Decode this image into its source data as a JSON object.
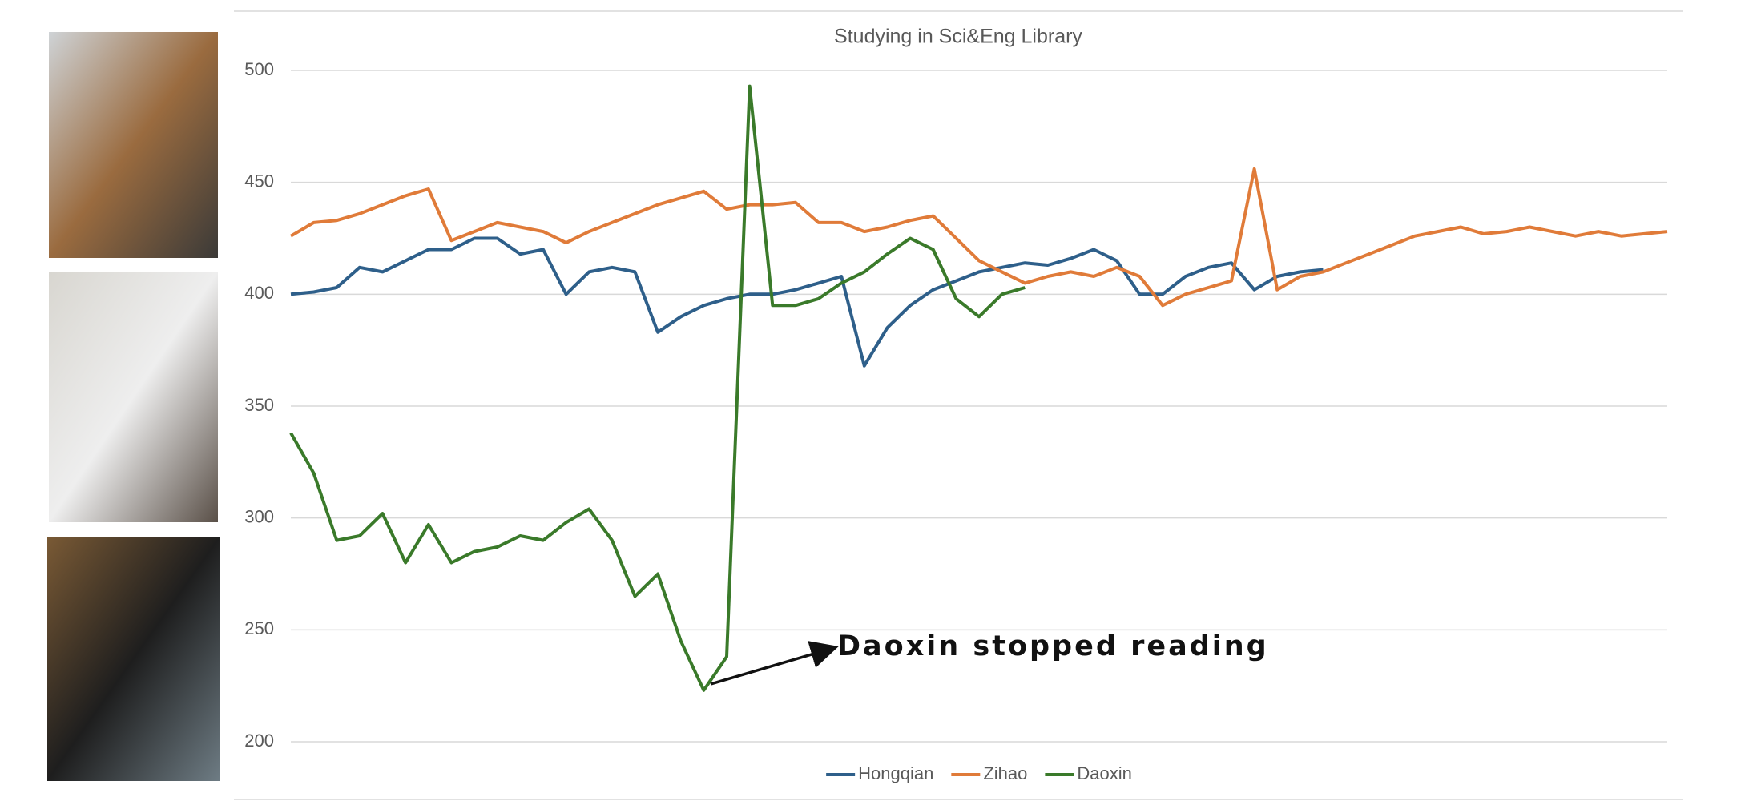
{
  "chart_data": {
    "type": "line",
    "title": "Studying in Sci&Eng Library",
    "ylim": [
      200,
      500
    ],
    "yticks": [
      200,
      250,
      300,
      350,
      400,
      450,
      500
    ],
    "grid": true,
    "legend": "bottom",
    "annotation": "Daoxin stopped reading",
    "series": [
      {
        "name": "Hongqian",
        "color": "#2e5f8a",
        "values": [
          400,
          401,
          403,
          412,
          410,
          415,
          420,
          420,
          425,
          425,
          418,
          420,
          400,
          410,
          412,
          410,
          383,
          390,
          395,
          398,
          400,
          400,
          402,
          405,
          408,
          368,
          385,
          395,
          402,
          406,
          410,
          412,
          414,
          413,
          416,
          420,
          415,
          400,
          400,
          408,
          412,
          414,
          402,
          408,
          410,
          411,
          null,
          null,
          null,
          null,
          null,
          null,
          null,
          null,
          null,
          null,
          null,
          null,
          null,
          null,
          null
        ]
      },
      {
        "name": "Zihao",
        "color": "#e07b39",
        "values": [
          426,
          432,
          433,
          436,
          440,
          444,
          447,
          424,
          428,
          432,
          430,
          428,
          423,
          428,
          432,
          436,
          440,
          443,
          446,
          438,
          440,
          440,
          441,
          432,
          432,
          428,
          430,
          433,
          435,
          425,
          415,
          410,
          405,
          408,
          410,
          408,
          412,
          408,
          395,
          400,
          403,
          406,
          456,
          402,
          408,
          410,
          414,
          418,
          422,
          426,
          428,
          430,
          427,
          428,
          430,
          428,
          426,
          428,
          426,
          427,
          428
        ]
      },
      {
        "name": "Daoxin",
        "color": "#3a7a2a",
        "values": [
          338,
          320,
          290,
          292,
          302,
          280,
          297,
          280,
          285,
          287,
          292,
          290,
          298,
          304,
          290,
          265,
          275,
          245,
          223,
          238,
          493,
          395,
          395,
          398,
          405,
          410,
          418,
          425,
          420,
          398,
          390,
          400,
          403,
          null,
          null,
          null,
          null,
          null,
          null,
          null,
          null,
          null,
          null,
          null,
          null,
          null,
          null,
          null,
          null,
          null,
          null,
          null,
          null,
          null,
          null,
          null,
          null,
          null,
          null,
          null,
          null
        ]
      }
    ]
  }
}
